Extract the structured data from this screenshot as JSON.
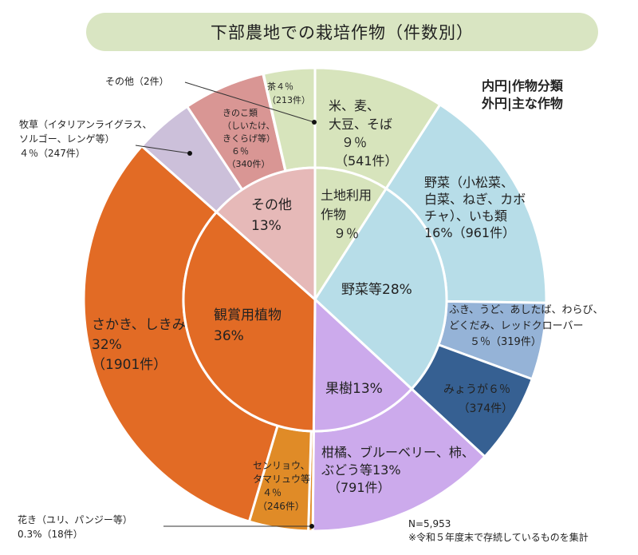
{
  "title": "下部農地での栽培作物（件数別）",
  "legend": {
    "inner": "内円|作物分類",
    "outer": "外円|主な作物"
  },
  "notes": {
    "n": "N=5,953",
    "footnote": "※令和５年度末で存続しているものを集計"
  },
  "colors": {
    "land_use": "#d7e4bc",
    "vegetables": "#b7dde8",
    "vegetables_wild": "#95b3d7",
    "myoga": "#366092",
    "fruit": "#ccaaec",
    "ornamental": "#e26b25",
    "ornamental_light": "#e08b27",
    "other": "#e6b9b8",
    "other_dark": "#d99694",
    "pasture": "#ccc0da"
  },
  "chart_data": {
    "type": "pie",
    "total": 5953,
    "inner": [
      {
        "label": "土地利用作物",
        "value_text": "９％",
        "percent": 9
      },
      {
        "label": "野菜等",
        "value_text": "28%",
        "percent": 28
      },
      {
        "label": "果樹",
        "value_text": "13%",
        "percent": 13
      },
      {
        "label": "観賞用植物",
        "value_text": "36%",
        "percent": 36
      },
      {
        "label": "その他",
        "value_text": "13%",
        "percent": 13
      }
    ],
    "outer": [
      {
        "label": "米、麦、大豆、そば",
        "pct_text": "９％",
        "count_text": "（541件）",
        "count": 541
      },
      {
        "label": "野菜（小松菜、白菜、ねぎ、カボチャ）、いも類",
        "pct_text": "16%",
        "count_text": "（961件）",
        "count": 961
      },
      {
        "label": "ふき、うど、あしたば、わらび、どくだみ、レッドクローバー",
        "pct_text": "５％",
        "count_text": "（319件）",
        "count": 319
      },
      {
        "label": "みょうが",
        "pct_text": "６％",
        "count_text": "（374件）",
        "count": 374
      },
      {
        "label": "柑橘、ブルーベリー、柿、ぶどう等",
        "pct_text": "13%",
        "count_text": "（791件）",
        "count": 791
      },
      {
        "label": "花き（ユリ、パンジー等）",
        "pct_text": "0.3%",
        "count_text": "（18件）",
        "count": 18
      },
      {
        "label": "センリョウ、タマリュウ等",
        "pct_text": "４％",
        "count_text": "（246件）",
        "count": 246
      },
      {
        "label": "さかき、しきみ",
        "pct_text": "32%",
        "count_text": "（1901件）",
        "count": 1901
      },
      {
        "label": "牧草（イタリアンライグラス、ソルゴー、レンゲ等）",
        "pct_text": "４％",
        "count_text": "（247件）",
        "count": 247
      },
      {
        "label": "きのこ類（しいたけ、きくらげ等）",
        "pct_text": "６％",
        "count_text": "（340件）",
        "count": 340
      },
      {
        "label": "その他",
        "pct_text": "",
        "count_text": "（2件）",
        "count": 2
      },
      {
        "label": "茶",
        "pct_text": "４％",
        "count_text": "（213件）",
        "count": 213
      }
    ]
  }
}
